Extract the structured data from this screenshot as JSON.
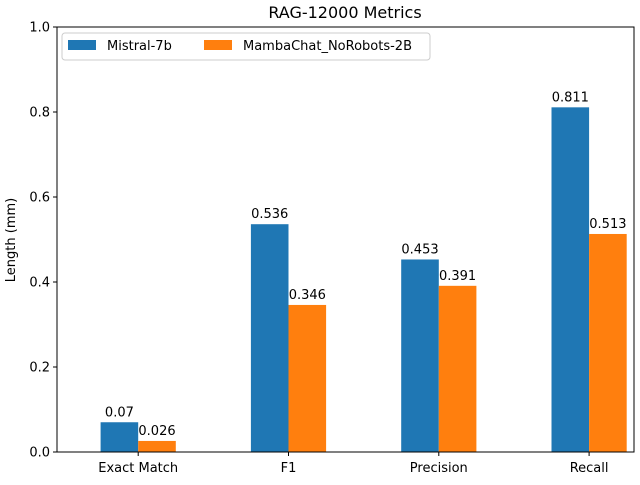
{
  "chart_data": {
    "type": "bar",
    "title": "RAG-12000 Metrics",
    "xlabel": "",
    "ylabel": "Length (mm)",
    "ylim": [
      0,
      1.0
    ],
    "yticks": [
      "0.0",
      "0.2",
      "0.4",
      "0.6",
      "0.8",
      "1.0"
    ],
    "categories": [
      "Exact Match",
      "F1",
      "Precision",
      "Recall"
    ],
    "legend_position": "top-left",
    "grid": false,
    "series": [
      {
        "name": "Mistral-7b",
        "color": "#1f77b4",
        "values": [
          0.07,
          0.536,
          0.453,
          0.811
        ],
        "labels": [
          "0.07",
          "0.536",
          "0.453",
          "0.811"
        ]
      },
      {
        "name": "MambaChat_NoRobots-2B",
        "color": "#ff7f0e",
        "values": [
          0.026,
          0.346,
          0.391,
          0.513
        ],
        "labels": [
          "0.026",
          "0.346",
          "0.391",
          "0.513"
        ]
      }
    ]
  }
}
